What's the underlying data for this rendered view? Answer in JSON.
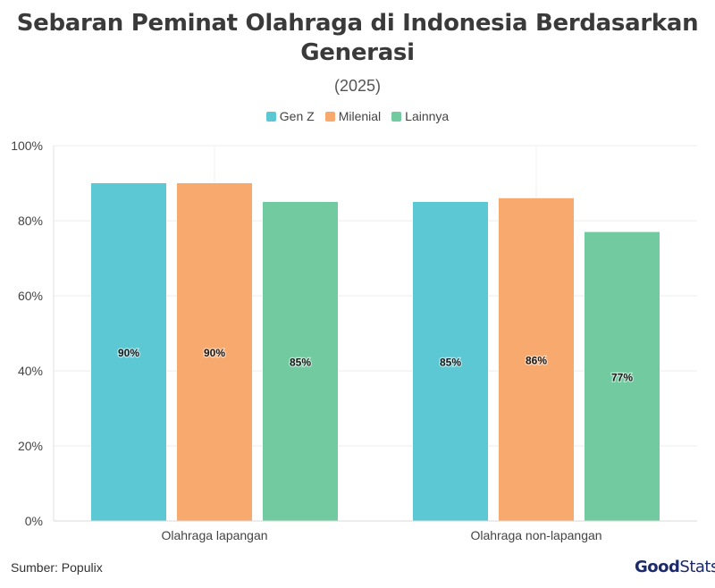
{
  "title": "Sebaran Peminat Olahraga di Indonesia Berdasarkan Generasi",
  "subtitle": "(2025)",
  "source": "Sumber: Populix",
  "logo": {
    "part1": "Good",
    "part2": "Stats"
  },
  "colors": {
    "genz": "#5bc8d4",
    "milenial": "#f8a96e",
    "lainnya": "#72cba0"
  },
  "chart_data": {
    "type": "bar",
    "title": "Sebaran Peminat Olahraga di Indonesia Berdasarkan Generasi",
    "subtitle": "(2025)",
    "categories": [
      "Olahraga lapangan",
      "Olahraga non-lapangan"
    ],
    "series": [
      {
        "name": "Gen Z",
        "values": [
          90,
          85
        ],
        "labels": [
          "90%",
          "85%"
        ],
        "color": "#5bc8d4"
      },
      {
        "name": "Milenial",
        "values": [
          90,
          86
        ],
        "labels": [
          "90%",
          "86%"
        ],
        "color": "#f8a96e"
      },
      {
        "name": "Lainnya",
        "values": [
          85,
          77
        ],
        "labels": [
          "85%",
          "77%"
        ],
        "color": "#72cba0"
      }
    ],
    "ylim": [
      0,
      100
    ],
    "yticks": [
      0,
      20,
      40,
      60,
      80,
      100
    ],
    "ytick_labels": [
      "0%",
      "20%",
      "40%",
      "60%",
      "80%",
      "100%"
    ],
    "xlabel": "",
    "ylabel": "",
    "legend": "top-center",
    "grid": true
  }
}
